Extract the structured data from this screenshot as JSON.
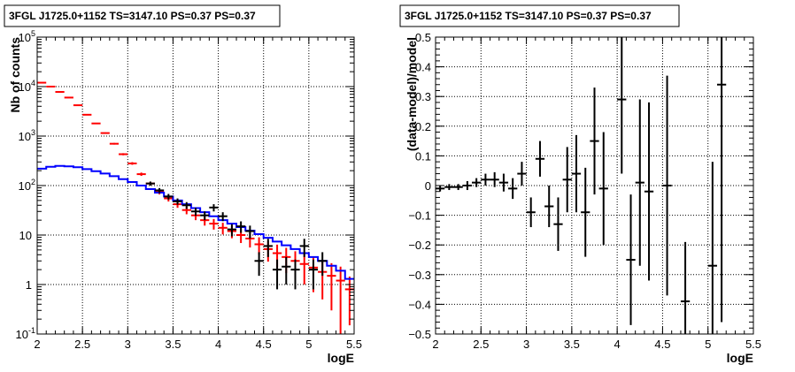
{
  "chart_data": [
    {
      "type": "histogram",
      "title": "3FGL J1725.0+1152 TS=3147.10 PS=0.37 PS=0.37",
      "xlabel": "logE",
      "ylabel": "Nb of counts",
      "xlim": [
        2,
        5.5
      ],
      "ylim": [
        0.1,
        100000
      ],
      "yscale": "log",
      "grid": true,
      "x_ticks": [
        "2",
        "2.5",
        "3",
        "3.5",
        "4",
        "4.5",
        "5",
        "5.5"
      ],
      "y_ticks": [
        {
          "value": 0.1,
          "mantissa": "10",
          "exp": "-1"
        },
        {
          "value": 1,
          "mantissa": "1",
          "exp": ""
        },
        {
          "value": 10,
          "mantissa": "10",
          "exp": ""
        },
        {
          "value": 100,
          "mantissa": "10",
          "exp": "2"
        },
        {
          "value": 1000,
          "mantissa": "10",
          "exp": "3"
        },
        {
          "value": 10000,
          "mantissa": "10",
          "exp": "4"
        },
        {
          "value": 100000,
          "mantissa": "10",
          "exp": "5"
        }
      ],
      "series": [
        {
          "color": "#ff0000",
          "style": "errorbar",
          "bin_width": 0.1,
          "x": [
            2.05,
            2.15,
            2.25,
            2.35,
            2.45,
            2.55,
            2.65,
            2.75,
            2.85,
            2.95,
            3.05,
            3.15,
            3.25,
            3.35,
            3.45,
            3.55,
            3.65,
            3.75,
            3.85,
            3.95,
            4.05,
            4.15,
            4.25,
            4.35,
            4.45,
            4.55,
            4.65,
            4.75,
            4.85,
            4.95,
            5.05,
            5.15,
            5.25,
            5.35,
            5.45
          ],
          "y": [
            12000,
            10000,
            7800,
            6000,
            4200,
            2700,
            1800,
            1150,
            700,
            430,
            280,
            170,
            110,
            75,
            55,
            42,
            32,
            25,
            20,
            17,
            14,
            12,
            10,
            8.5,
            6.5,
            5.2,
            4.3,
            3.6,
            3.0,
            2.6,
            2.2,
            1.8,
            1.5,
            1.2,
            0.8
          ],
          "err": [
            110,
            100,
            88,
            77,
            65,
            52,
            42,
            34,
            26,
            21,
            17,
            13,
            10,
            8.7,
            7.4,
            6.5,
            5.7,
            5,
            4.5,
            4.1,
            3.7,
            3.4,
            3.1,
            2.9,
            2.5,
            2.3,
            2.1,
            1.9,
            1.7,
            1.6,
            1.5,
            1.3,
            1.2,
            1.1,
            0.65
          ]
        },
        {
          "color": "#0000ff",
          "style": "step",
          "bin_width": 0.1,
          "x": [
            2.05,
            2.15,
            2.25,
            2.35,
            2.45,
            2.55,
            2.65,
            2.75,
            2.85,
            2.95,
            3.05,
            3.15,
            3.25,
            3.35,
            3.45,
            3.55,
            3.65,
            3.75,
            3.85,
            3.95,
            4.05,
            4.15,
            4.25,
            4.35,
            4.45,
            4.55,
            4.65,
            4.75,
            4.85,
            4.95,
            5.05,
            5.15,
            5.25,
            5.35,
            5.45
          ],
          "y": [
            220,
            240,
            250,
            245,
            235,
            215,
            195,
            175,
            155,
            135,
            118,
            100,
            85,
            72,
            60,
            50,
            42,
            35,
            29,
            24,
            20,
            17,
            14.5,
            12.3,
            10.4,
            8.8,
            7.4,
            6.2,
            5.2,
            4.3,
            3.6,
            3.0,
            2.4,
            1.9,
            1.3
          ]
        },
        {
          "color": "#000000",
          "style": "errorbar",
          "bin_width": 0.1,
          "x": [
            3.25,
            3.35,
            3.45,
            3.55,
            3.65,
            3.75,
            3.85,
            3.95,
            4.05,
            4.15,
            4.25,
            4.35,
            4.45,
            4.55,
            4.65,
            4.75,
            4.85,
            4.95,
            5.05,
            5.15
          ],
          "y": [
            110,
            80,
            60,
            48,
            40,
            30,
            25,
            36,
            24,
            13,
            15,
            12,
            3,
            6,
            2,
            2.3,
            2,
            6,
            2,
            3
          ],
          "err": [
            10.5,
            9,
            7.7,
            6.9,
            6.3,
            5.5,
            5,
            6,
            4.9,
            3.6,
            3.9,
            3.5,
            1.5,
            2.4,
            1.2,
            1.3,
            1.2,
            2.4,
            1.2,
            1.5
          ]
        }
      ]
    },
    {
      "type": "scatter",
      "title": "3FGL J1725.0+1152 TS=3147.10 PS=0.37 PS=0.37",
      "xlabel": "logE",
      "ylabel": "(data-model)/model",
      "xlim": [
        2,
        5.5
      ],
      "ylim": [
        -0.5,
        0.5
      ],
      "grid": true,
      "x_ticks": [
        "2",
        "2.5",
        "3",
        "3.5",
        "4",
        "4.5",
        "5",
        "5.5"
      ],
      "y_ticks": [
        "−0.5",
        "−0.4",
        "−0.3",
        "−0.2",
        "−0.1",
        "0",
        "0.1",
        "0.2",
        "0.3",
        "0.4",
        "0.5"
      ],
      "series": [
        {
          "color": "#000000",
          "style": "errorbar",
          "bin_width": 0.1,
          "x": [
            2.05,
            2.15,
            2.25,
            2.35,
            2.45,
            2.55,
            2.65,
            2.75,
            2.85,
            2.95,
            3.05,
            3.15,
            3.25,
            3.35,
            3.45,
            3.55,
            3.65,
            3.75,
            3.85,
            4.05,
            4.15,
            4.25,
            4.35,
            4.55,
            4.75,
            5.05,
            5.15
          ],
          "y": [
            -0.01,
            -0.005,
            -0.005,
            0,
            0.01,
            0.02,
            0.02,
            0.01,
            -0.01,
            0.04,
            -0.09,
            0.09,
            -0.07,
            -0.13,
            0.02,
            0.04,
            -0.09,
            0.15,
            -0.01,
            0.29,
            -0.25,
            0.01,
            -0.02,
            0,
            -0.39,
            -0.27,
            0.34
          ],
          "err": [
            0.01,
            0.01,
            0.01,
            0.015,
            0.015,
            0.02,
            0.025,
            0.03,
            0.035,
            0.04,
            0.05,
            0.06,
            0.07,
            0.09,
            0.11,
            0.13,
            0.15,
            0.18,
            0.19,
            0.25,
            0.22,
            0.28,
            0.3,
            0.37,
            0.2,
            0.35,
            0.8
          ]
        }
      ]
    }
  ]
}
